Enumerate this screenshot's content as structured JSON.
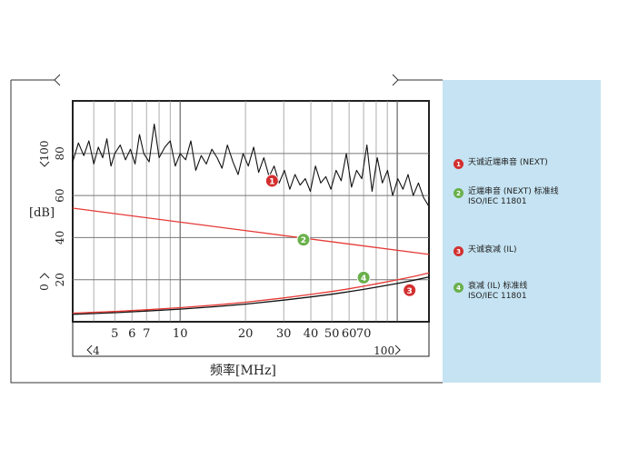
{
  "chart_data": {
    "type": "line",
    "xscale": "log",
    "xlim": [
      3.2,
      140
    ],
    "ylim": [
      0,
      105
    ],
    "xlabel": "频率[MHz]",
    "ylabel": "[dB]",
    "x_ticks": [
      5,
      6,
      7,
      10,
      20,
      30,
      40,
      50,
      60,
      70
    ],
    "x_tick_labels": [
      "5",
      "6",
      "7",
      "10",
      "20",
      "30",
      "40",
      "50",
      "60",
      "70"
    ],
    "y_ticks": [
      20,
      40,
      60,
      80
    ],
    "y_tick_labels": [
      "20",
      "40",
      "60",
      "80"
    ],
    "y_marks": [
      "0",
      "100"
    ],
    "x_marks": [
      "4",
      "100"
    ],
    "grid": true,
    "legend_position": "right",
    "series": [
      {
        "name": "天诚近端串音 (NEXT)",
        "marker": "1",
        "color": "#111111",
        "x": [
          3.2,
          3.4,
          3.6,
          3.8,
          4.0,
          4.2,
          4.4,
          4.6,
          4.8,
          5.0,
          5.3,
          5.6,
          5.9,
          6.2,
          6.5,
          6.8,
          7.2,
          7.6,
          8.0,
          8.5,
          9.0,
          9.5,
          10,
          10.6,
          11.2,
          11.8,
          12.5,
          13.2,
          14,
          14.8,
          15.6,
          16.5,
          17.5,
          18.5,
          19.5,
          20.6,
          21.8,
          23,
          24.3,
          25.7,
          27.1,
          28.6,
          30.2,
          32,
          33.8,
          35.7,
          37.7,
          39.8,
          42,
          44.4,
          46.9,
          49.5,
          52.3,
          55.2,
          58.3,
          61.6,
          65,
          68.7,
          72.5,
          76.6,
          80.9,
          85.4,
          90.2,
          95.3,
          100.6,
          106.3,
          112.2,
          118.5,
          125.2,
          132.2,
          139.6
        ],
        "y": [
          76,
          85,
          79,
          86,
          75,
          83,
          78,
          87,
          74,
          80,
          84,
          77,
          82,
          75,
          89,
          80,
          76,
          94,
          78,
          83,
          86,
          74,
          80,
          77,
          86,
          72,
          79,
          75,
          82,
          78,
          73,
          84,
          76,
          70,
          80,
          74,
          83,
          71,
          78,
          69,
          74,
          66,
          72,
          63,
          70,
          65,
          68,
          62,
          74,
          66,
          69,
          63,
          72,
          67,
          80,
          64,
          72,
          68,
          84,
          62,
          78,
          66,
          72,
          60,
          68,
          63,
          70,
          60,
          66,
          59,
          55
        ]
      },
      {
        "name": "近端串音 (NEXT) 标准线\nISO/IEC 11801",
        "marker": "2",
        "color": "#e53935",
        "x": [
          3.2,
          140
        ],
        "y": [
          54,
          32
        ]
      },
      {
        "name": "天诚衰减 (IL)",
        "marker": "3",
        "color": "#111111",
        "x": [
          3.2,
          5,
          7,
          10,
          15,
          20,
          30,
          40,
          50,
          60,
          70,
          80,
          100,
          120,
          140
        ],
        "y": [
          3.5,
          4.3,
          5.1,
          6,
          7.3,
          8.4,
          10.3,
          11.8,
          13.1,
          14.3,
          15.4,
          16.4,
          18.2,
          19.8,
          21.3
        ]
      },
      {
        "name": "衰减 (IL) 标准线\nISO/IEC 11801",
        "marker": "4",
        "color": "#e53935",
        "x": [
          3.2,
          5,
          7,
          10,
          15,
          20,
          30,
          40,
          50,
          60,
          70,
          80,
          100,
          120,
          140
        ],
        "y": [
          4.1,
          4.9,
          5.7,
          6.7,
          8.1,
          9.3,
          11.3,
          13,
          14.4,
          15.7,
          16.9,
          18,
          19.9,
          21.6,
          23.2
        ]
      }
    ]
  },
  "legend": {
    "items": [
      {
        "number": "1",
        "text": "天诚近端串音 (NEXT)",
        "color": "#d32f2f"
      },
      {
        "number": "2",
        "text": "近端串音 (NEXT) 标准线\nISO/IEC 11801",
        "color": "#6ab04c"
      },
      {
        "number": "3",
        "text": "天诚衰减 (IL)",
        "color": "#d32f2f"
      },
      {
        "number": "4",
        "text": "衰减 (IL) 标准线\nISO/IEC 11801",
        "color": "#6ab04c"
      }
    ]
  }
}
